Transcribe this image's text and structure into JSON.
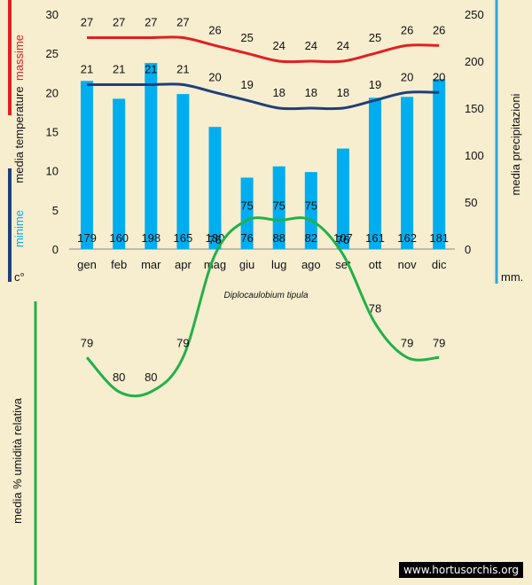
{
  "chart_data": [
    {
      "type": "bar+line",
      "title": "Diplocaulobium tipula",
      "categories": [
        "gen",
        "feb",
        "mar",
        "apr",
        "mag",
        "giu",
        "lug",
        "ago",
        "set",
        "ott",
        "nov",
        "dic"
      ],
      "series": [
        {
          "name": "massime",
          "kind": "line",
          "axis": "left",
          "color": "#e02020",
          "values": [
            27,
            27,
            27,
            27,
            26,
            25,
            24,
            24,
            24,
            25,
            26,
            26
          ]
        },
        {
          "name": "minime",
          "kind": "line",
          "axis": "left",
          "color": "#1f3f7a",
          "values": [
            21,
            21,
            21,
            21,
            20,
            19,
            18,
            18,
            18,
            19,
            20,
            20
          ]
        },
        {
          "name": "media precipitazioni",
          "kind": "bar",
          "axis": "right",
          "color": "#00aeef",
          "values": [
            179,
            160,
            198,
            165,
            130,
            76,
            88,
            82,
            107,
            161,
            162,
            181
          ]
        }
      ],
      "left_axis": {
        "label_top": "massime",
        "label_mid": "media  temperature",
        "label_bottom": "minime",
        "unit": "c°",
        "ylim": [
          0,
          30
        ],
        "ticks": [
          "0",
          "5",
          "10",
          "15",
          "20",
          "25",
          "30"
        ]
      },
      "right_axis": {
        "label": "media  precipitazioni",
        "unit": "mm.",
        "ylim": [
          0,
          250
        ],
        "ticks": [
          "0",
          "50",
          "100",
          "150",
          "200",
          "250"
        ]
      }
    },
    {
      "type": "line",
      "ylabel": "media %  umidità relativa",
      "categories": [
        "gen",
        "feb",
        "mar",
        "apr",
        "mag",
        "giu",
        "lug",
        "ago",
        "set",
        "ott",
        "nov",
        "dic"
      ],
      "series": [
        {
          "name": "umidità relativa",
          "color": "#22b04b",
          "values": [
            79,
            80,
            80,
            79,
            76,
            75,
            75,
            75,
            76,
            78,
            79,
            79
          ]
        }
      ]
    }
  ],
  "colors": {
    "max": "#e02020",
    "min": "#1f3f7a",
    "precip": "#00aeef",
    "humidity": "#22b04b"
  },
  "watermark": "www.hortusorchis.org"
}
